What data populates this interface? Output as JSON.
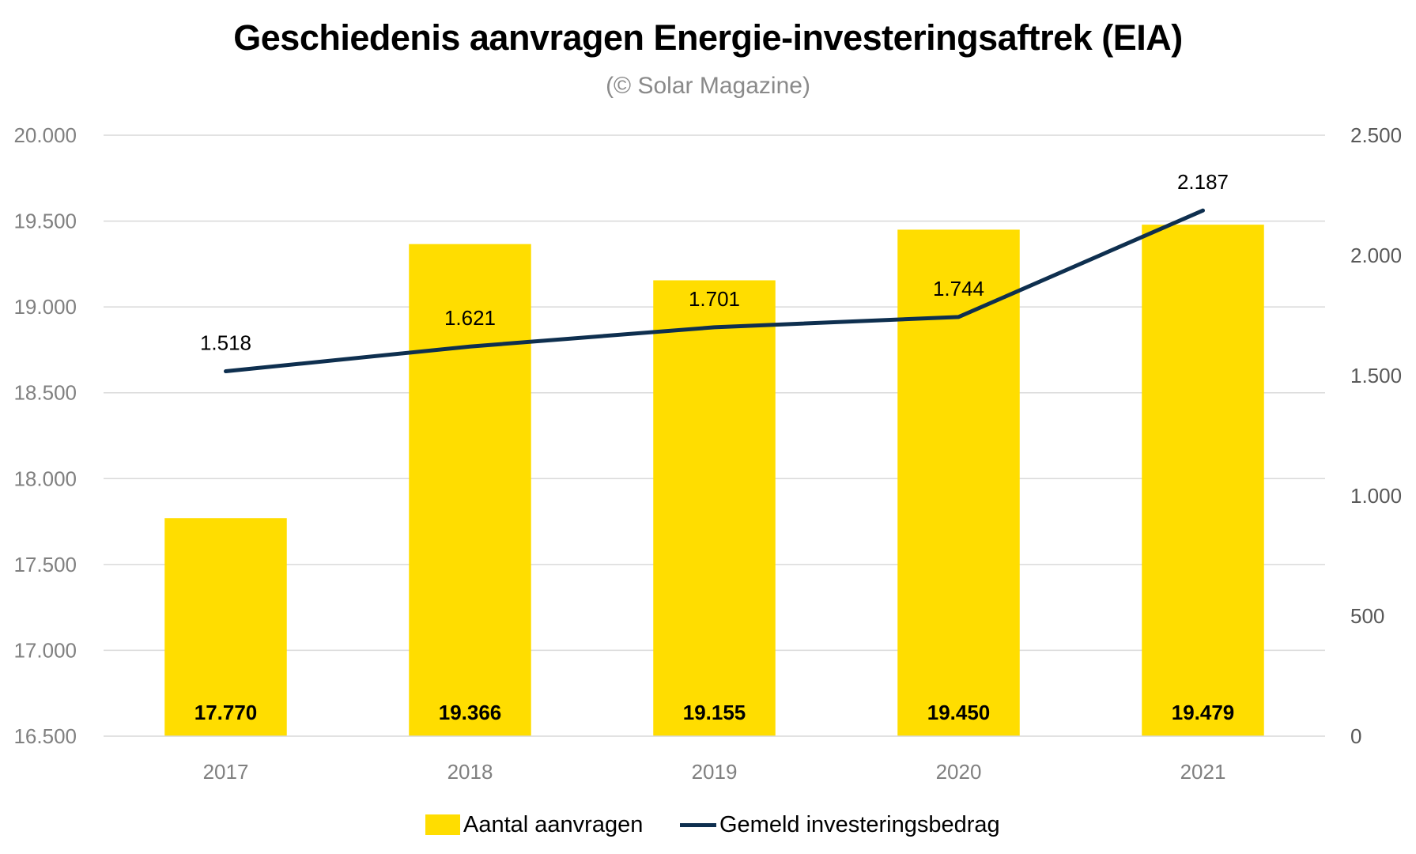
{
  "header": {
    "title": "Geschiedenis aanvragen Energie-investeringsaftrek (EIA)",
    "subtitle": "(© Solar Magazine)"
  },
  "colors": {
    "bar": "#FFDD00",
    "line": "#0E2F4F",
    "grid": "#D9D9D9"
  },
  "chart_data": {
    "type": "bar",
    "title": "Geschiedenis aanvragen Energie-investeringsaftrek (EIA)",
    "subtitle": "(© Solar Magazine)",
    "categories": [
      "2017",
      "2018",
      "2019",
      "2020",
      "2021"
    ],
    "series": [
      {
        "name": "Aantal aanvragen",
        "type": "bar",
        "axis": "left",
        "values": [
          17770,
          19366,
          19155,
          19450,
          19479
        ],
        "labels": [
          "17.770",
          "19.366",
          "19.155",
          "19.450",
          "19.479"
        ]
      },
      {
        "name": "Gemeld investeringsbedrag",
        "type": "line",
        "axis": "right",
        "values": [
          1518,
          1621,
          1701,
          1744,
          2187
        ],
        "labels": [
          "1.518",
          "1.621",
          "1.701",
          "1.744",
          "2.187"
        ]
      }
    ],
    "left_axis": {
      "ylim": [
        16500,
        20000
      ],
      "ticks": [
        16500,
        17000,
        17500,
        18000,
        18500,
        19000,
        19500,
        20000
      ],
      "tick_labels": [
        "16.500",
        "17.000",
        "17.500",
        "18.000",
        "18.500",
        "19.000",
        "19.500",
        "20.000"
      ]
    },
    "right_axis": {
      "ylim": [
        0,
        2500
      ],
      "ticks": [
        0,
        500,
        1000,
        1500,
        2000,
        2500
      ],
      "tick_labels": [
        "0",
        "500",
        "1.000",
        "1.500",
        "2.000",
        "2.500"
      ]
    },
    "xlabel": "",
    "ylabel": "",
    "grid": true,
    "legend_position": "bottom"
  },
  "legend": {
    "items": [
      {
        "label": "Aantal aanvragen",
        "kind": "bar"
      },
      {
        "label": "Gemeld investeringsbedrag",
        "kind": "line"
      }
    ]
  }
}
